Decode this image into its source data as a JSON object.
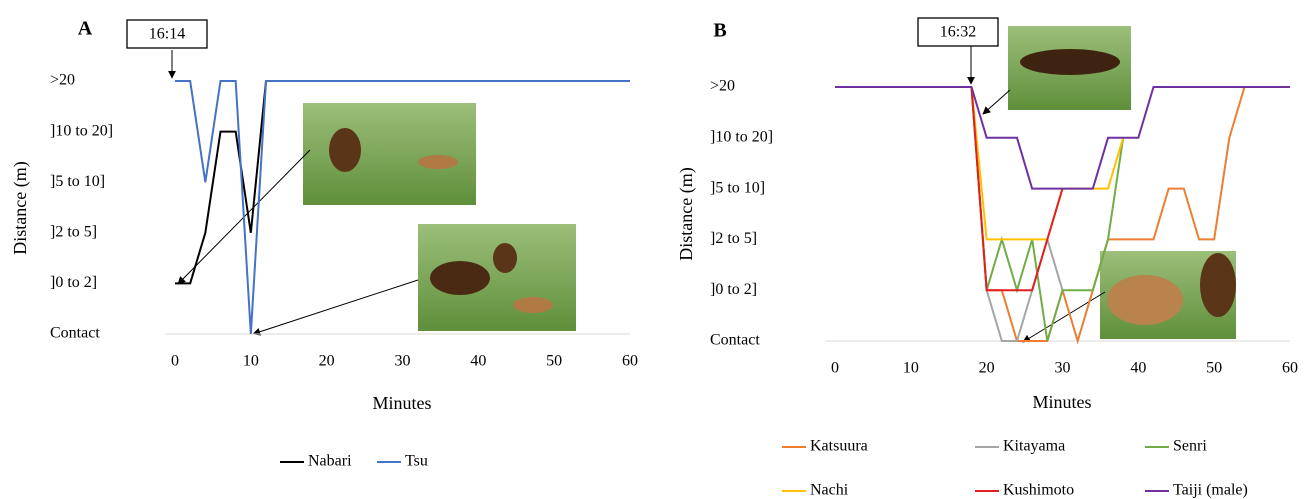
{
  "chart_data": [
    {
      "type": "line",
      "panel": "A",
      "annotation": "16:14",
      "x_label": "Minutes",
      "y_label": "Distance (m)",
      "x": [
        0,
        2,
        4,
        6,
        8,
        10,
        12,
        60
      ],
      "series": [
        {
          "name": "Nabari",
          "color": "#000000",
          "values": [
            1,
            1,
            2,
            4,
            4,
            2,
            5,
            5
          ]
        },
        {
          "name": "Tsu",
          "color": "#4472c4",
          "values": [
            5,
            5,
            3,
            5,
            5,
            0,
            5,
            5
          ]
        }
      ],
      "xlim": [
        0,
        60
      ],
      "xticks": [
        0,
        10,
        20,
        30,
        40,
        50,
        60
      ],
      "ylim": [
        0,
        5
      ],
      "yticks": [
        {
          "value": 0,
          "label": "Contact"
        },
        {
          "value": 1,
          "label": "]0 to 2]"
        },
        {
          "value": 2,
          "label": "]2 to 5]"
        },
        {
          "value": 3,
          "label": "]5 to 10]"
        },
        {
          "value": 4,
          "label": "]10 to 20]"
        },
        {
          "value": 5,
          "label": ">20"
        }
      ]
    },
    {
      "type": "line",
      "panel": "B",
      "annotation": "16:32",
      "x_label": "Minutes",
      "y_label": "Distance (m)",
      "x": [
        0,
        18,
        20,
        22,
        24,
        26,
        28,
        30,
        32,
        34,
        36,
        38,
        40,
        42,
        44,
        46,
        48,
        50,
        52,
        54,
        60
      ],
      "series": [
        {
          "name": "Katsuura",
          "color": "#ed7d31",
          "values": [
            null,
            5,
            1,
            1,
            0,
            0,
            0,
            1,
            0,
            1,
            2,
            2,
            2,
            2,
            3,
            3,
            2,
            2,
            4,
            5,
            null
          ]
        },
        {
          "name": "Kitayama",
          "color": "#a5a5a5",
          "values": [
            null,
            5,
            1,
            0,
            0,
            1,
            2,
            1,
            null,
            null,
            null,
            null,
            null,
            null,
            null,
            null,
            null,
            null,
            null,
            null,
            null
          ]
        },
        {
          "name": "Senri",
          "color": "#70ad47",
          "values": [
            null,
            5,
            1,
            2,
            1,
            2,
            0,
            1,
            1,
            1,
            2,
            4,
            null,
            null,
            null,
            null,
            null,
            null,
            null,
            null,
            null
          ]
        },
        {
          "name": "Nachi",
          "color": "#ffc000",
          "values": [
            null,
            5,
            2,
            2,
            2,
            2,
            2,
            3,
            3,
            3,
            3,
            4,
            null,
            null,
            null,
            null,
            null,
            null,
            null,
            null,
            null
          ]
        },
        {
          "name": "Kushimoto",
          "color": "#e02020",
          "values": [
            null,
            5,
            1,
            1,
            1,
            1,
            2,
            3,
            null,
            null,
            null,
            null,
            null,
            null,
            null,
            null,
            null,
            null,
            null,
            null,
            null
          ]
        },
        {
          "name": "Taiji (male)",
          "color": "#7030a0",
          "values": [
            5,
            5,
            4,
            4,
            4,
            3,
            3,
            3,
            3,
            3,
            4,
            4,
            4,
            5,
            5,
            5,
            5,
            5,
            5,
            5,
            5
          ]
        }
      ],
      "xlim": [
        0,
        60
      ],
      "xticks": [
        0,
        10,
        20,
        30,
        40,
        50,
        60
      ],
      "ylim": [
        0,
        5
      ],
      "yticks": [
        {
          "value": 0,
          "label": "Contact"
        },
        {
          "value": 1,
          "label": "]0 to 2]"
        },
        {
          "value": 2,
          "label": "]2 to 5]"
        },
        {
          "value": 3,
          "label": "]5 to 10]"
        },
        {
          "value": 4,
          "label": "]10 to 20]"
        },
        {
          "value": 5,
          "label": ">20"
        }
      ]
    }
  ]
}
